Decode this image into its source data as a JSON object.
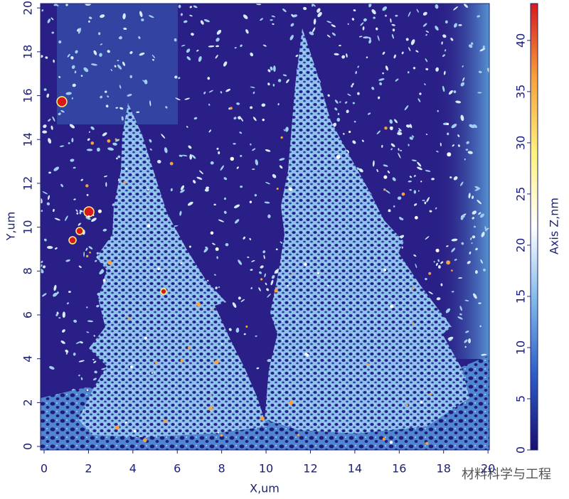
{
  "chart_data": {
    "type": "image",
    "xlabel": "X,um",
    "ylabel": "Y,um",
    "zlabel": "Axis Z,nm",
    "xlim": [
      -0.16,
      20.06
    ],
    "ylim": [
      -0.16,
      20.2
    ],
    "zlim": [
      0,
      43.6
    ],
    "xticks": [
      0,
      2,
      4,
      6,
      8,
      10,
      12,
      14,
      16,
      18,
      20
    ],
    "yticks": [
      0,
      2,
      4,
      6,
      8,
      10,
      12,
      14,
      16,
      18,
      20
    ],
    "zticks": [
      0,
      5,
      10,
      15,
      20,
      25,
      30,
      35,
      40
    ],
    "colormap": [
      "#1a0f6e",
      "#2c5cc4",
      "#7fb8e6",
      "#ffffff",
      "#fff27a",
      "#f7a23a",
      "#d7191c"
    ],
    "watermark": "材料科学与工程"
  }
}
